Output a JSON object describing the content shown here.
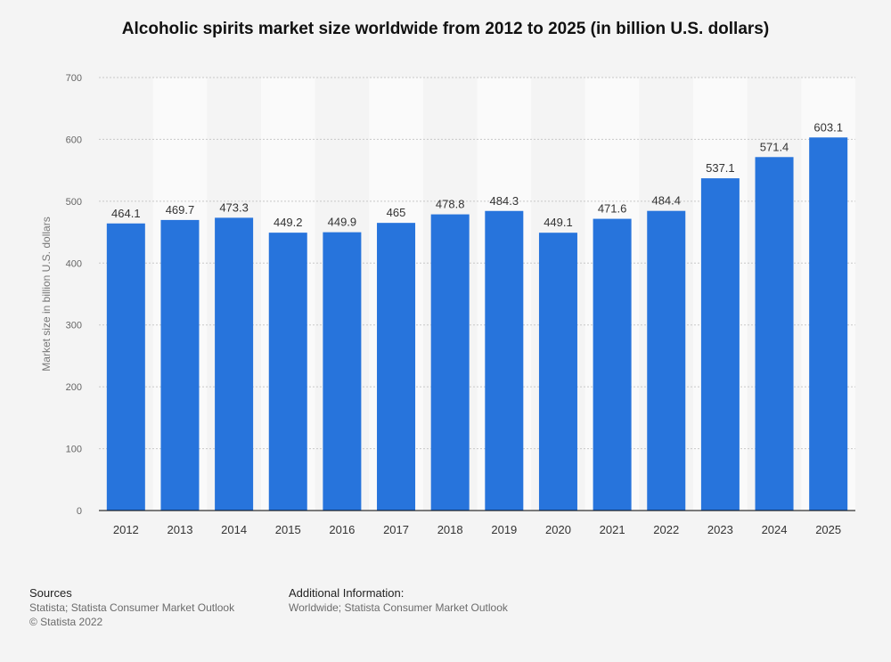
{
  "title": "Alcoholic spirits market size worldwide from 2012 to 2025 (in billion U.S. dollars)",
  "colors": {
    "bar": "#2774dc",
    "background": "#f4f4f4",
    "band": "#fafafa",
    "axis": "#000000"
  },
  "chart_data": {
    "type": "bar",
    "title": "Alcoholic spirits market size worldwide from 2012 to 2025 (in billion U.S. dollars)",
    "xlabel": "",
    "ylabel": "Market size in billion U.S. dollars",
    "ylim": [
      0,
      700
    ],
    "yticks": [
      0,
      100,
      200,
      300,
      400,
      500,
      600,
      700
    ],
    "grid": true,
    "categories": [
      "2012",
      "2013",
      "2014",
      "2015",
      "2016",
      "2017",
      "2018",
      "2019",
      "2020",
      "2021",
      "2022",
      "2023",
      "2024",
      "2025"
    ],
    "values": [
      464.1,
      469.7,
      473.3,
      449.2,
      449.9,
      465,
      478.8,
      484.3,
      449.1,
      471.6,
      484.4,
      537.1,
      571.4,
      603.1
    ],
    "labels": [
      "464.1",
      "469.7",
      "473.3",
      "449.2",
      "449.9",
      "465",
      "478.8",
      "484.3",
      "449.1",
      "471.6",
      "484.4",
      "537.1",
      "571.4",
      "603.1"
    ]
  },
  "footer": {
    "sources_heading": "Sources",
    "sources_line1": "Statista; Statista Consumer Market Outlook",
    "sources_line2": "© Statista 2022",
    "additional_heading": "Additional Information:",
    "additional_line1": "Worldwide; Statista Consumer Market Outlook"
  }
}
